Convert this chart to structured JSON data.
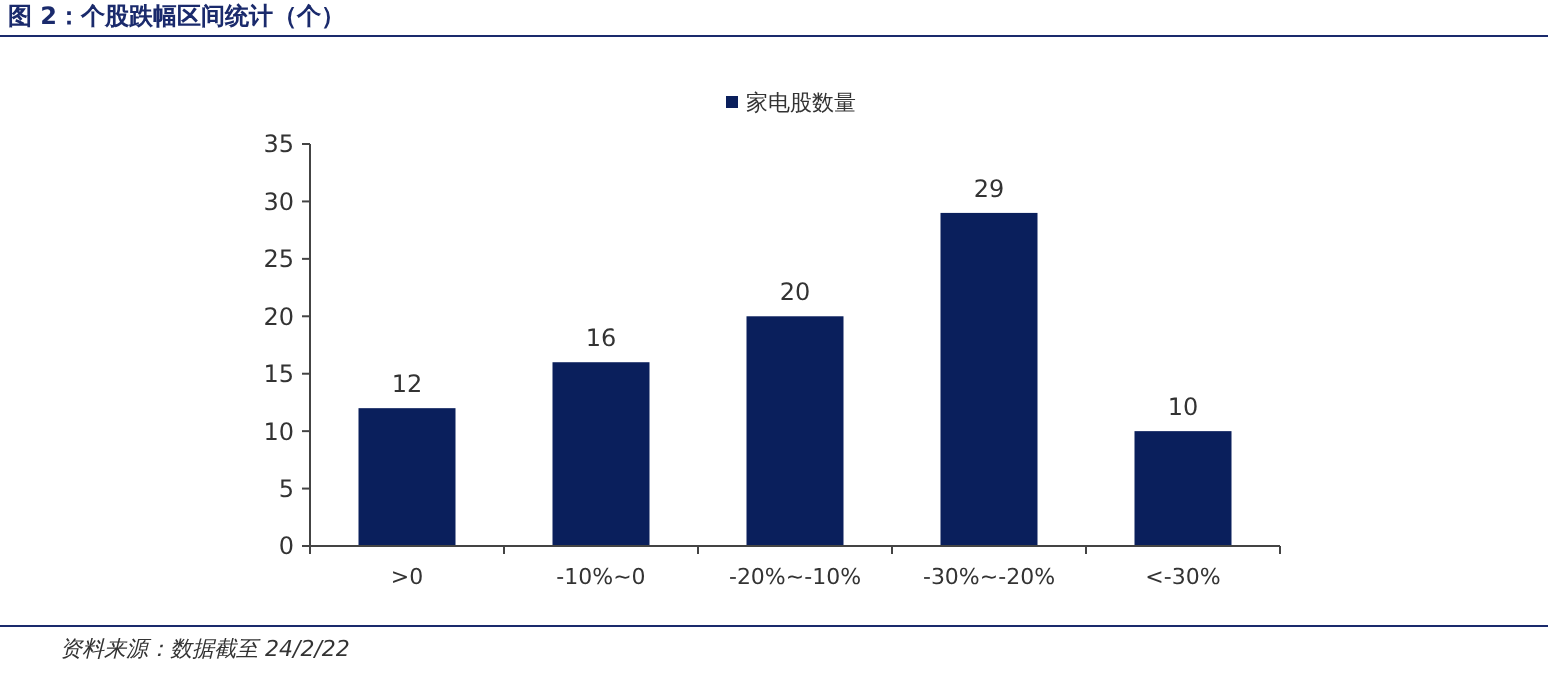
{
  "chart_data": {
    "type": "bar",
    "title": "图 2：个股跌幅区间统计（个）",
    "categories": [
      ">0",
      "-10%~0",
      "-20%~-10%",
      "-30%~-20%",
      "<-30%"
    ],
    "series": [
      {
        "name": "家电股数量",
        "color": "#0a1f5c",
        "values": [
          12,
          16,
          20,
          29,
          10
        ]
      }
    ],
    "ylim": [
      0,
      35
    ],
    "yticks": [
      0,
      5,
      10,
      15,
      20,
      25,
      30,
      35
    ],
    "grid": false,
    "legend": "top",
    "data_labels": true,
    "annotations": [
      "资料来源：数据截至 24/2/22"
    ]
  }
}
